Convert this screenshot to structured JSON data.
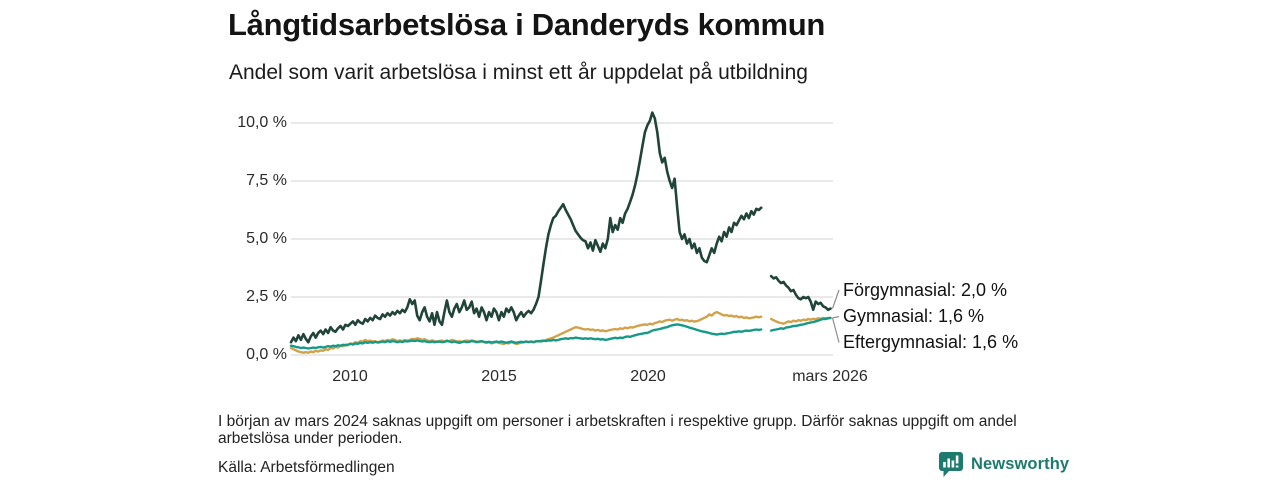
{
  "header": {
    "title": "Långtidsarbetslösa i Danderyds kommun",
    "subtitle": "Andel som varit arbetslösa i minst ett år uppdelat på utbildning"
  },
  "chart_data": {
    "type": "line",
    "title": "Långtidsarbetslösa i Danderyds kommun",
    "subtitle": "Andel som varit arbetslösa i minst ett år uppdelat på utbildning",
    "unit": "%",
    "frequency": "monthly",
    "x_start": {
      "year": 2008,
      "month": 1
    },
    "x_end": {
      "year": 2026,
      "month": 3
    },
    "xlim": [
      2008,
      2026.25
    ],
    "ylim": [
      0,
      10.5
    ],
    "grid": true,
    "legend_position": "end-of-line-labels",
    "colors": {
      "grid": "#dcdcdc",
      "connector": "#8c8c8c"
    },
    "y_ticks": [
      {
        "value": 10.0,
        "label": "10,0 %"
      },
      {
        "value": 7.5,
        "label": "7,5 %"
      },
      {
        "value": 5.0,
        "label": "5,0 %"
      },
      {
        "value": 2.5,
        "label": "2,5 %"
      },
      {
        "value": 0.0,
        "label": "0,0 %"
      }
    ],
    "x_ticks": [
      {
        "value": 2010,
        "label": "2010"
      },
      {
        "value": 2015,
        "label": "2015"
      },
      {
        "value": 2020,
        "label": "2020"
      },
      {
        "value": 2026.17,
        "label": "mars 2026"
      }
    ],
    "series": [
      {
        "name": "Förgymnasial",
        "end_label": "Förgymnasial: 2,0 %",
        "latest_value": 2.0,
        "color": "#20443a",
        "values": [
          0.55,
          0.75,
          0.6,
          0.85,
          0.65,
          0.9,
          0.7,
          0.55,
          0.8,
          0.95,
          0.75,
          0.95,
          1.05,
          0.9,
          1.1,
          0.95,
          1.2,
          1.05,
          1.0,
          1.15,
          1.25,
          1.1,
          1.3,
          1.25,
          1.35,
          1.45,
          1.3,
          1.5,
          1.4,
          1.35,
          1.55,
          1.45,
          1.6,
          1.5,
          1.7,
          1.6,
          1.55,
          1.75,
          1.65,
          1.8,
          1.7,
          1.85,
          1.75,
          1.9,
          1.8,
          1.95,
          1.85,
          2.05,
          2.4,
          2.2,
          2.35,
          1.7,
          1.5,
          1.85,
          2.05,
          1.65,
          1.45,
          1.8,
          1.3,
          1.85,
          1.45,
          1.3,
          1.85,
          2.35,
          1.85,
          1.65,
          2.0,
          2.2,
          1.85,
          2.05,
          2.35,
          1.95,
          2.05,
          2.3,
          1.8,
          2.0,
          1.65,
          2.05,
          1.85,
          1.5,
          1.85,
          1.65,
          2.0,
          1.85,
          1.5,
          1.85,
          1.65,
          2.0,
          1.85,
          2.05,
          1.85,
          1.5,
          1.7,
          1.85,
          1.65,
          1.8,
          1.9,
          1.8,
          1.95,
          2.2,
          2.5,
          3.2,
          3.9,
          4.6,
          5.2,
          5.6,
          5.9,
          6.0,
          6.2,
          6.35,
          6.5,
          6.25,
          6.05,
          5.85,
          5.6,
          5.35,
          5.2,
          5.05,
          4.95,
          4.9,
          4.6,
          4.85,
          4.5,
          4.95,
          4.7,
          4.45,
          4.8,
          4.6,
          5.0,
          5.9,
          5.3,
          5.6,
          5.4,
          5.9,
          5.7,
          6.1,
          6.3,
          6.6,
          6.9,
          7.3,
          7.8,
          8.4,
          9.0,
          9.6,
          9.9,
          10.1,
          10.45,
          10.2,
          9.6,
          8.7,
          8.3,
          8.5,
          7.9,
          7.5,
          7.2,
          7.6,
          6.4,
          5.3,
          5.0,
          5.2,
          4.8,
          5.0,
          4.6,
          4.8,
          4.4,
          4.6,
          4.2,
          4.05,
          4.0,
          4.3,
          4.6,
          4.4,
          4.8,
          5.1,
          4.9,
          5.3,
          5.1,
          5.5,
          5.3,
          5.7,
          5.6,
          5.8,
          6.0,
          5.85,
          6.1,
          5.9,
          6.2,
          6.05,
          6.3,
          6.25,
          6.35,
          null,
          null,
          null,
          3.4,
          3.3,
          3.35,
          3.2,
          3.1,
          3.15,
          3.0,
          2.9,
          2.75,
          2.8,
          2.6,
          2.45,
          2.4,
          2.5,
          2.45,
          2.5,
          2.3,
          1.95,
          2.3,
          2.2,
          2.25,
          2.1,
          2.05,
          1.95,
          2.0
        ]
      },
      {
        "name": "Gymnasial",
        "end_label": "Gymnasial: 1,6 %",
        "latest_value": 1.6,
        "color": "#d2a14b",
        "values": [
          0.3,
          0.25,
          0.2,
          0.15,
          0.12,
          0.1,
          0.12,
          0.1,
          0.15,
          0.12,
          0.18,
          0.15,
          0.2,
          0.18,
          0.25,
          0.22,
          0.3,
          0.28,
          0.35,
          0.32,
          0.4,
          0.38,
          0.45,
          0.42,
          0.5,
          0.48,
          0.55,
          0.52,
          0.6,
          0.58,
          0.65,
          0.6,
          0.62,
          0.58,
          0.6,
          0.55,
          0.58,
          0.62,
          0.6,
          0.65,
          0.62,
          0.68,
          0.65,
          0.6,
          0.63,
          0.6,
          0.65,
          0.62,
          0.65,
          0.7,
          0.68,
          0.72,
          0.7,
          0.65,
          0.68,
          0.63,
          0.6,
          0.63,
          0.6,
          0.58,
          0.6,
          0.62,
          0.58,
          0.63,
          0.6,
          0.65,
          0.62,
          0.58,
          0.6,
          0.57,
          0.6,
          0.62,
          0.6,
          0.63,
          0.6,
          0.58,
          0.55,
          0.58,
          0.55,
          0.52,
          0.55,
          0.5,
          0.53,
          0.55,
          0.52,
          0.5,
          0.48,
          0.52,
          0.5,
          0.55,
          0.52,
          0.48,
          0.5,
          0.53,
          0.55,
          0.58,
          0.55,
          0.58,
          0.55,
          0.6,
          0.58,
          0.62,
          0.6,
          0.65,
          0.68,
          0.72,
          0.75,
          0.8,
          0.85,
          0.9,
          0.95,
          1.0,
          1.05,
          1.1,
          1.15,
          1.2,
          1.18,
          1.15,
          1.12,
          1.1,
          1.12,
          1.08,
          1.1,
          1.05,
          1.08,
          1.04,
          1.06,
          1.02,
          1.05,
          1.08,
          1.1,
          1.12,
          1.1,
          1.15,
          1.12,
          1.18,
          1.15,
          1.2,
          1.18,
          1.22,
          1.25,
          1.28,
          1.3,
          1.32,
          1.3,
          1.35,
          1.32,
          1.38,
          1.4,
          1.45,
          1.42,
          1.48,
          1.5,
          1.52,
          1.48,
          1.52,
          1.55,
          1.5,
          1.52,
          1.48,
          1.5,
          1.45,
          1.48,
          1.44,
          1.46,
          1.5,
          1.55,
          1.6,
          1.65,
          1.75,
          1.7,
          1.8,
          1.85,
          1.8,
          1.75,
          1.7,
          1.72,
          1.68,
          1.7,
          1.65,
          1.68,
          1.62,
          1.65,
          1.6,
          1.62,
          1.58,
          1.6,
          1.62,
          1.65,
          1.62,
          1.65,
          null,
          null,
          null,
          1.55,
          1.5,
          1.45,
          1.4,
          1.38,
          1.35,
          1.4,
          1.45,
          1.42,
          1.48,
          1.45,
          1.5,
          1.48,
          1.52,
          1.5,
          1.55,
          1.52,
          1.56,
          1.54,
          1.58,
          1.56,
          1.6,
          1.58,
          1.6,
          1.6
        ]
      },
      {
        "name": "Eftergymnasial",
        "end_label": "Eftergymnasial: 1,6 %",
        "latest_value": 1.6,
        "color": "#169a88",
        "values": [
          0.4,
          0.38,
          0.35,
          0.33,
          0.3,
          0.32,
          0.3,
          0.28,
          0.3,
          0.32,
          0.3,
          0.33,
          0.35,
          0.32,
          0.35,
          0.38,
          0.36,
          0.4,
          0.38,
          0.42,
          0.4,
          0.44,
          0.42,
          0.45,
          0.48,
          0.45,
          0.5,
          0.48,
          0.52,
          0.5,
          0.55,
          0.52,
          0.55,
          0.53,
          0.56,
          0.54,
          0.55,
          0.58,
          0.55,
          0.6,
          0.57,
          0.6,
          0.58,
          0.55,
          0.58,
          0.56,
          0.6,
          0.58,
          0.6,
          0.62,
          0.6,
          0.63,
          0.6,
          0.58,
          0.6,
          0.57,
          0.55,
          0.58,
          0.55,
          0.57,
          0.58,
          0.55,
          0.57,
          0.6,
          0.58,
          0.55,
          0.58,
          0.55,
          0.52,
          0.55,
          0.58,
          0.55,
          0.57,
          0.6,
          0.58,
          0.55,
          0.58,
          0.6,
          0.57,
          0.55,
          0.57,
          0.54,
          0.56,
          0.58,
          0.55,
          0.58,
          0.55,
          0.53,
          0.55,
          0.58,
          0.55,
          0.52,
          0.55,
          0.57,
          0.55,
          0.58,
          0.56,
          0.58,
          0.55,
          0.58,
          0.6,
          0.58,
          0.62,
          0.6,
          0.63,
          0.62,
          0.65,
          0.63,
          0.65,
          0.68,
          0.7,
          0.72,
          0.7,
          0.73,
          0.72,
          0.75,
          0.73,
          0.72,
          0.7,
          0.72,
          0.7,
          0.72,
          0.7,
          0.68,
          0.7,
          0.67,
          0.68,
          0.65,
          0.67,
          0.7,
          0.72,
          0.74,
          0.72,
          0.75,
          0.73,
          0.78,
          0.8,
          0.78,
          0.82,
          0.85,
          0.88,
          0.9,
          0.92,
          0.95,
          0.95,
          1.0,
          1.05,
          1.08,
          1.1,
          1.12,
          1.15,
          1.18,
          1.2,
          1.25,
          1.28,
          1.3,
          1.32,
          1.3,
          1.28,
          1.25,
          1.22,
          1.18,
          1.15,
          1.12,
          1.08,
          1.05,
          1.02,
          1.0,
          0.98,
          0.95,
          0.92,
          0.9,
          0.88,
          0.9,
          0.92,
          0.9,
          0.93,
          0.95,
          0.97,
          1.0,
          1.0,
          1.02,
          1.0,
          1.03,
          1.05,
          1.04,
          1.06,
          1.08,
          1.1,
          1.08,
          1.1,
          null,
          null,
          null,
          1.05,
          1.08,
          1.1,
          1.12,
          1.15,
          1.13,
          1.18,
          1.2,
          1.22,
          1.25,
          1.25,
          1.28,
          1.3,
          1.32,
          1.35,
          1.38,
          1.4,
          1.42,
          1.45,
          1.48,
          1.52,
          1.55,
          1.55,
          1.58,
          1.6
        ]
      }
    ]
  },
  "footnote": "I början av mars 2024 saknas uppgift om personer i arbetskraften i respektive grupp. Därför saknas uppgift om andel arbetslösa under perioden.",
  "source": "Källa: Arbetsförmedlingen",
  "branding": {
    "name": "Newsworthy",
    "icon": "newsworthy-speech-bubble-bar-chart-icon",
    "color": "#1e7a6e"
  }
}
